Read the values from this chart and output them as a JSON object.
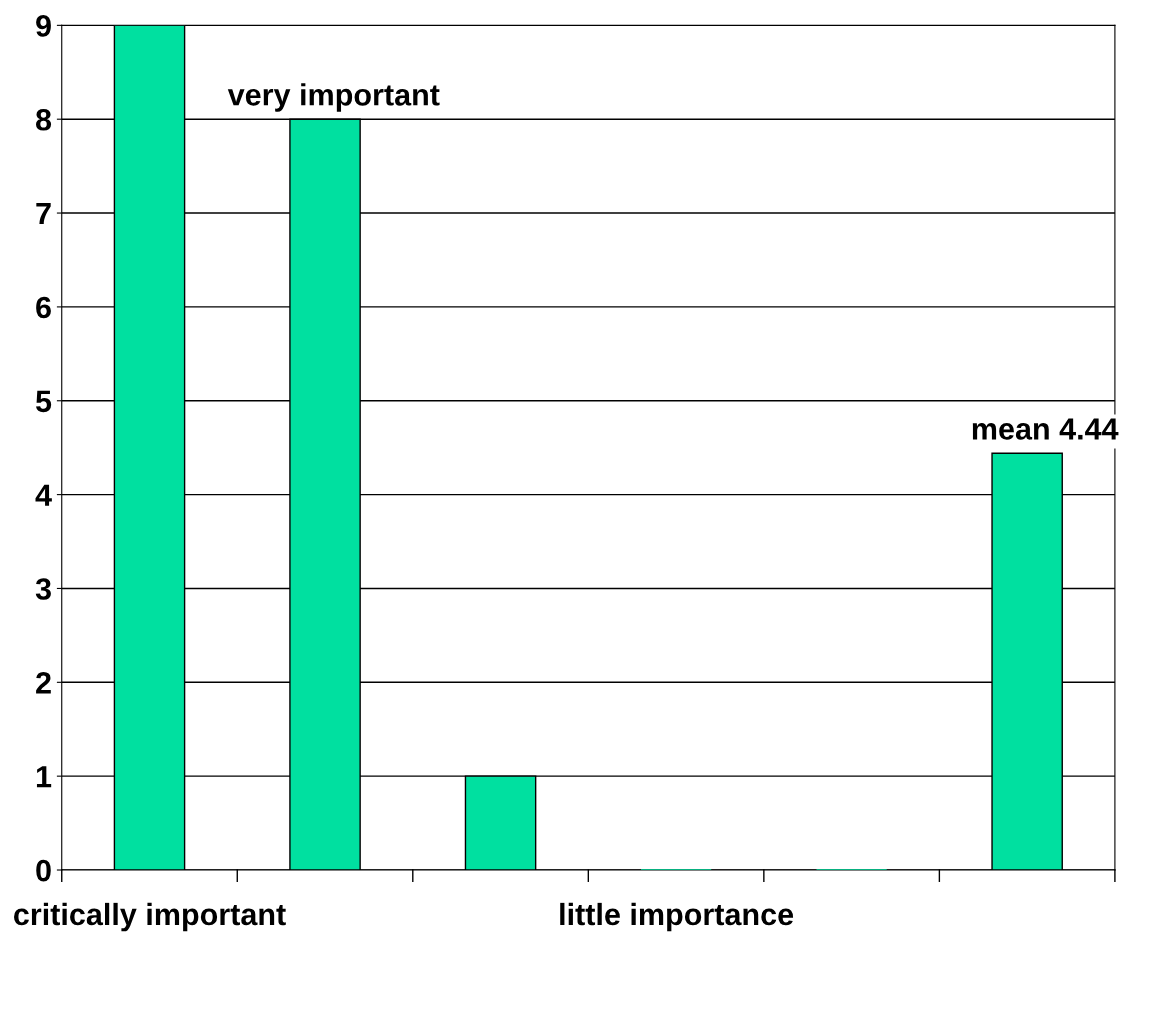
{
  "chart_data": {
    "type": "bar",
    "categories": [
      "critically important",
      "very important",
      null,
      "little importance",
      null,
      "mean 4.44"
    ],
    "values": [
      9,
      8,
      1,
      0,
      0,
      4.44
    ],
    "color": "#00e0a0",
    "ylim": [
      0,
      9
    ],
    "yticks": [
      0,
      1,
      2,
      3,
      4,
      5,
      6,
      7,
      8,
      9
    ],
    "grid": "y"
  }
}
